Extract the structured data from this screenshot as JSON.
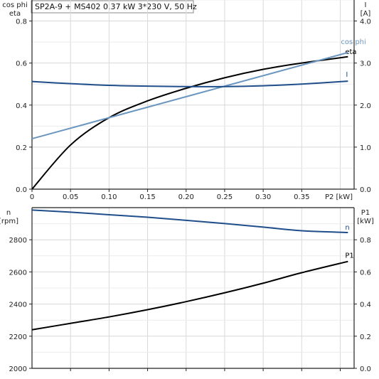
{
  "chart_data": [
    {
      "type": "line",
      "title": "SP2A-9 + MS402   0.37 kW   3*230 V, 50 Hz",
      "xlabel": "P2 [kW]",
      "ylabel_left": [
        "cos phi",
        "eta"
      ],
      "ylabel_right": [
        "I",
        "[A]"
      ],
      "xlim": [
        0,
        0.418
      ],
      "ylim_left": [
        0,
        0.9
      ],
      "ylim_right": [
        0,
        4.5
      ],
      "x_ticks": [
        "0",
        "0.05",
        "0.10",
        "0.15",
        "0.20",
        "0.25",
        "0.30",
        "0.35"
      ],
      "y_ticks_left": [
        "0.0",
        "0.2",
        "0.4",
        "0.6",
        "0.8"
      ],
      "y_ticks_right": [
        "0.0",
        "1.0",
        "2.0",
        "3.0",
        "4.0"
      ],
      "grid": true,
      "series": [
        {
          "name": "eta",
          "axis": "left",
          "color": "#000000",
          "x": [
            0,
            0.05,
            0.1,
            0.15,
            0.2,
            0.25,
            0.3,
            0.35,
            0.41
          ],
          "values": [
            0,
            0.21,
            0.34,
            0.42,
            0.48,
            0.53,
            0.57,
            0.6,
            0.63
          ]
        },
        {
          "name": "cos phi",
          "axis": "left",
          "color": "#6b96c0",
          "x": [
            0,
            0.41
          ],
          "values": [
            0.24,
            0.65
          ]
        },
        {
          "name": "I",
          "axis": "right",
          "color": "#1f4e8a",
          "x": [
            0,
            0.05,
            0.1,
            0.15,
            0.2,
            0.25,
            0.3,
            0.35,
            0.41
          ],
          "values": [
            2.56,
            2.51,
            2.47,
            2.45,
            2.44,
            2.44,
            2.46,
            2.5,
            2.57
          ]
        }
      ]
    },
    {
      "type": "line",
      "xlabel": "",
      "ylabel_left": [
        "n",
        "[rpm]"
      ],
      "ylabel_right": [
        "P1",
        "[kW]"
      ],
      "xlim": [
        0,
        0.418
      ],
      "ylim_left": [
        2000,
        3000
      ],
      "ylim_right": [
        0,
        1.0
      ],
      "y_ticks_left": [
        "2000",
        "2200",
        "2400",
        "2600",
        "2800"
      ],
      "y_ticks_right": [
        "0.0",
        "0.2",
        "0.4",
        "0.6",
        "0.8"
      ],
      "grid": true,
      "series": [
        {
          "name": "n",
          "axis": "left",
          "color": "#1f4e8a",
          "x": [
            0,
            0.05,
            0.1,
            0.15,
            0.2,
            0.25,
            0.3,
            0.35,
            0.41
          ],
          "values": [
            2985,
            2972,
            2956,
            2940,
            2921,
            2901,
            2879,
            2856,
            2845
          ]
        },
        {
          "name": "P1",
          "axis": "right",
          "color": "#000000",
          "x": [
            0,
            0.05,
            0.1,
            0.15,
            0.2,
            0.25,
            0.3,
            0.35,
            0.41
          ],
          "values": [
            0.24,
            0.28,
            0.32,
            0.365,
            0.415,
            0.47,
            0.53,
            0.595,
            0.665
          ]
        }
      ]
    }
  ]
}
